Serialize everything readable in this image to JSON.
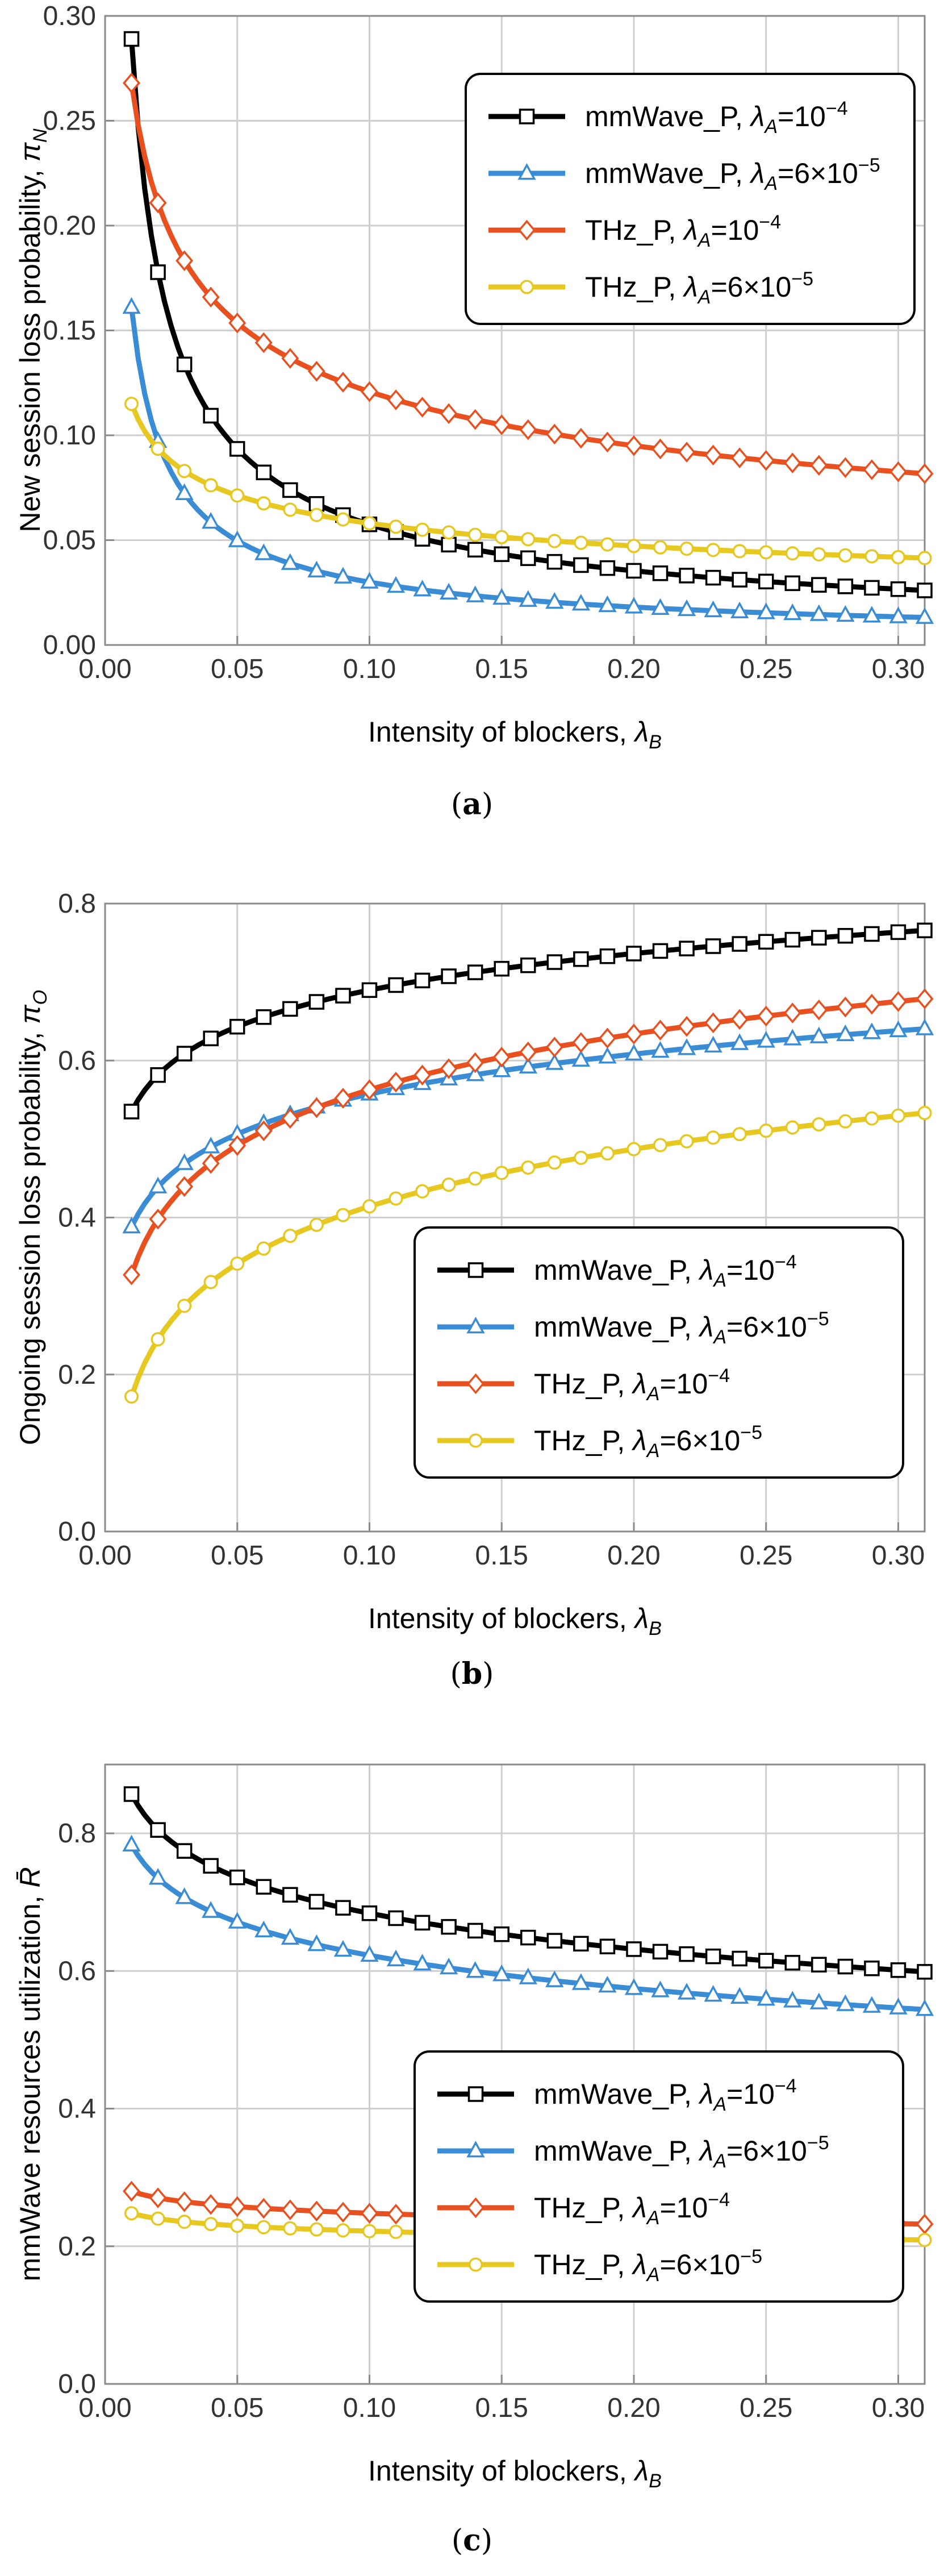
{
  "chart_data": [
    {
      "type": "line",
      "panel_label": "a",
      "xlabel": "Intensity of blockers, ",
      "xlabel_symbol": "λ",
      "xlabel_sub": "B",
      "ylabel": "New session loss probability, ",
      "ylabel_symbol": "π",
      "ylabel_sub": "N",
      "xlim": [
        0,
        0.31
      ],
      "ylim": [
        0,
        0.3
      ],
      "xticks": [
        0.0,
        0.05,
        0.1,
        0.15,
        0.2,
        0.25,
        0.3
      ],
      "xtick_labels": [
        "0.00",
        "0.05",
        "0.10",
        "0.15",
        "0.20",
        "0.25",
        "0.30"
      ],
      "yticks": [
        0,
        0.05,
        0.1,
        0.15,
        0.2,
        0.25,
        0.3
      ],
      "ytick_labels": [
        "0.00",
        "0.05",
        "0.10",
        "0.15",
        "0.20",
        "0.25",
        "0.30"
      ],
      "legend_position": "top-right",
      "series": [
        {
          "name": "mmWave_P, λ_A=10^-4",
          "label_main": "mmWave_P, ",
          "label_lambda": "λ",
          "label_sub": "A",
          "label_eq": "=10",
          "label_sup": "−4",
          "color": "#000000",
          "marker": "square",
          "model": "power",
          "x0": 0.01,
          "y0": 0.289,
          "exp": 0.701
        },
        {
          "name": "mmWave_P, λ_A=6×10^-5",
          "label_main": "mmWave_P, ",
          "label_lambda": "λ",
          "label_sub": "A",
          "label_eq": "=6×10",
          "label_sup": "−5",
          "color": "#3a8dd5",
          "marker": "triangle",
          "model": "power",
          "x0": 0.01,
          "y0": 0.161,
          "exp": 0.73
        },
        {
          "name": "THz_P, λ_A=10^-4",
          "label_main": "THz_P, ",
          "label_lambda": "λ",
          "label_sub": "A",
          "label_eq": "=10",
          "label_sup": "−4",
          "color": "#e8501f",
          "marker": "diamond",
          "model": "power",
          "x0": 0.01,
          "y0": 0.268,
          "exp": 0.346
        },
        {
          "name": "THz_P, λ_A=6×10^-5",
          "label_main": "THz_P, ",
          "label_lambda": "λ",
          "label_sub": "A",
          "label_eq": "=6×10",
          "label_sup": "−5",
          "color": "#e6c820",
          "marker": "circle",
          "model": "power",
          "x0": 0.01,
          "y0": 0.115,
          "exp": 0.297
        }
      ]
    },
    {
      "type": "line",
      "panel_label": "b",
      "xlabel": "Intensity of blockers, ",
      "xlabel_symbol": "λ",
      "xlabel_sub": "B",
      "ylabel": "Ongoing session loss probability, ",
      "ylabel_symbol": "π",
      "ylabel_sub": "O",
      "xlim": [
        0,
        0.31
      ],
      "ylim": [
        0,
        0.8
      ],
      "xticks": [
        0.0,
        0.05,
        0.1,
        0.15,
        0.2,
        0.25,
        0.3
      ],
      "xtick_labels": [
        "0.00",
        "0.05",
        "0.10",
        "0.15",
        "0.20",
        "0.25",
        "0.30"
      ],
      "yticks": [
        0,
        0.2,
        0.4,
        0.6,
        0.8
      ],
      "ytick_labels": [
        "0.0",
        "0.2",
        "0.4",
        "0.6",
        "0.8"
      ],
      "legend_position": "bottom-right",
      "series": [
        {
          "name": "mmWave_P, λ_A=10^-4",
          "label_main": "mmWave_P, ",
          "label_lambda": "λ",
          "label_sub": "A",
          "label_eq": "=10",
          "label_sup": "−4",
          "color": "#000000",
          "marker": "square",
          "model": "log",
          "x0": 0.01,
          "y0": 0.535,
          "k": 0.0672
        },
        {
          "name": "mmWave_P, λ_A=6×10^-5",
          "label_main": "mmWave_P, ",
          "label_lambda": "λ",
          "label_sub": "A",
          "label_eq": "=6×10",
          "label_sup": "−5",
          "color": "#3a8dd5",
          "marker": "triangle",
          "model": "log",
          "x0": 0.01,
          "y0": 0.388,
          "k": 0.0735
        },
        {
          "name": "THz_P, λ_A=10^-4",
          "label_main": "THz_P, ",
          "label_lambda": "λ",
          "label_sub": "A",
          "label_eq": "=10",
          "label_sup": "−4",
          "color": "#e8501f",
          "marker": "diamond",
          "model": "log",
          "x0": 0.01,
          "y0": 0.327,
          "k": 0.1024
        },
        {
          "name": "THz_P, λ_A=6×10^-5",
          "label_main": "THz_P, ",
          "label_lambda": "λ",
          "label_sub": "A",
          "label_eq": "=6×10",
          "label_sup": "−5",
          "color": "#e6c820",
          "marker": "circle",
          "model": "log",
          "x0": 0.01,
          "y0": 0.172,
          "k": 0.1052
        }
      ]
    },
    {
      "type": "line",
      "panel_label": "c",
      "xlabel": "Intensity of blockers, ",
      "xlabel_symbol": "λ",
      "xlabel_sub": "B",
      "ylabel": "mmWave resources utilization, ",
      "ylabel_symbol": "R̄",
      "ylabel_sub": "",
      "xlim": [
        0,
        0.31
      ],
      "ylim": [
        0,
        0.9
      ],
      "xticks": [
        0.0,
        0.05,
        0.1,
        0.15,
        0.2,
        0.25,
        0.3
      ],
      "xtick_labels": [
        "0.00",
        "0.05",
        "0.10",
        "0.15",
        "0.20",
        "0.25",
        "0.30"
      ],
      "yticks": [
        0,
        0.2,
        0.4,
        0.6,
        0.8
      ],
      "ytick_labels": [
        "0.0",
        "0.2",
        "0.4",
        "0.6",
        "0.8"
      ],
      "legend_position": "bottom-right",
      "series": [
        {
          "name": "mmWave_P, λ_A=10^-4",
          "label_main": "mmWave_P, ",
          "label_lambda": "λ",
          "label_sub": "A",
          "label_eq": "=10",
          "label_sup": "−4",
          "color": "#000000",
          "marker": "square",
          "model": "log",
          "x0": 0.01,
          "y0": 0.857,
          "k": -0.0752
        },
        {
          "name": "mmWave_P, λ_A=6×10^-5",
          "label_main": "mmWave_P, ",
          "label_lambda": "λ",
          "label_sub": "A",
          "label_eq": "=6×10",
          "label_sup": "−5",
          "color": "#3a8dd5",
          "marker": "triangle",
          "model": "log",
          "x0": 0.01,
          "y0": 0.783,
          "k": -0.0696
        },
        {
          "name": "THz_P, λ_A=10^-4",
          "label_main": "THz_P, ",
          "label_lambda": "λ",
          "label_sub": "A",
          "label_eq": "=10",
          "label_sup": "−4",
          "color": "#e8501f",
          "marker": "diamond",
          "model": "log",
          "x0": 0.01,
          "y0": 0.28,
          "k": -0.0139
        },
        {
          "name": "THz_P, λ_A=6×10^-5",
          "label_main": "THz_P, ",
          "label_lambda": "λ",
          "label_sub": "A",
          "label_eq": "=6×10",
          "label_sup": "−5",
          "color": "#e6c820",
          "marker": "circle",
          "model": "log",
          "x0": 0.01,
          "y0": 0.248,
          "k": -0.0113
        }
      ]
    }
  ],
  "captions": [
    "a",
    "b",
    "c"
  ]
}
